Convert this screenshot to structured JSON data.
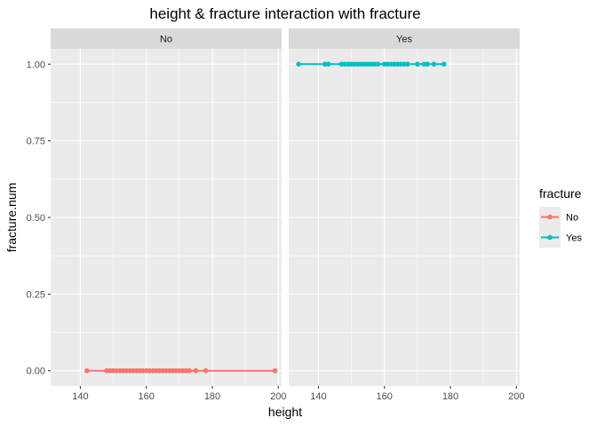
{
  "chart_data": {
    "type": "line",
    "title": "height & fracture  interaction with fracture",
    "xlabel": "height",
    "ylabel": "fracture.num",
    "xlim": [
      131,
      201
    ],
    "ylim": [
      -0.05,
      1.05
    ],
    "x_ticks": [
      140,
      160,
      180,
      200
    ],
    "x_tick_labels": [
      "140",
      "160",
      "180",
      "200"
    ],
    "y_ticks": [
      0,
      0.25,
      0.5,
      0.75,
      1
    ],
    "y_tick_labels": [
      "0.00",
      "0.25",
      "0.50",
      "0.75",
      "1.00"
    ],
    "grid": true,
    "facet_variable": "fracture",
    "panels": [
      {
        "strip": "No",
        "series": "No",
        "y": 0,
        "x": [
          142,
          148,
          149,
          150,
          151,
          152,
          153,
          154,
          155,
          156,
          157,
          158,
          159,
          160,
          161,
          162,
          163,
          164,
          165,
          166,
          167,
          168,
          169,
          170,
          171,
          172,
          173,
          175,
          178,
          199
        ]
      },
      {
        "strip": "Yes",
        "series": "Yes",
        "y": 1,
        "x": [
          134,
          142,
          143,
          147,
          148,
          149,
          150,
          151,
          152,
          153,
          154,
          155,
          156,
          157,
          158,
          160,
          161,
          162,
          163,
          164,
          165,
          166,
          167,
          170,
          172,
          173,
          175,
          178
        ]
      }
    ],
    "legend": {
      "title": "fracture",
      "position": "right",
      "entries": [
        {
          "name": "No",
          "color": "#f8766d"
        },
        {
          "name": "Yes",
          "color": "#00bfc4"
        }
      ]
    }
  }
}
